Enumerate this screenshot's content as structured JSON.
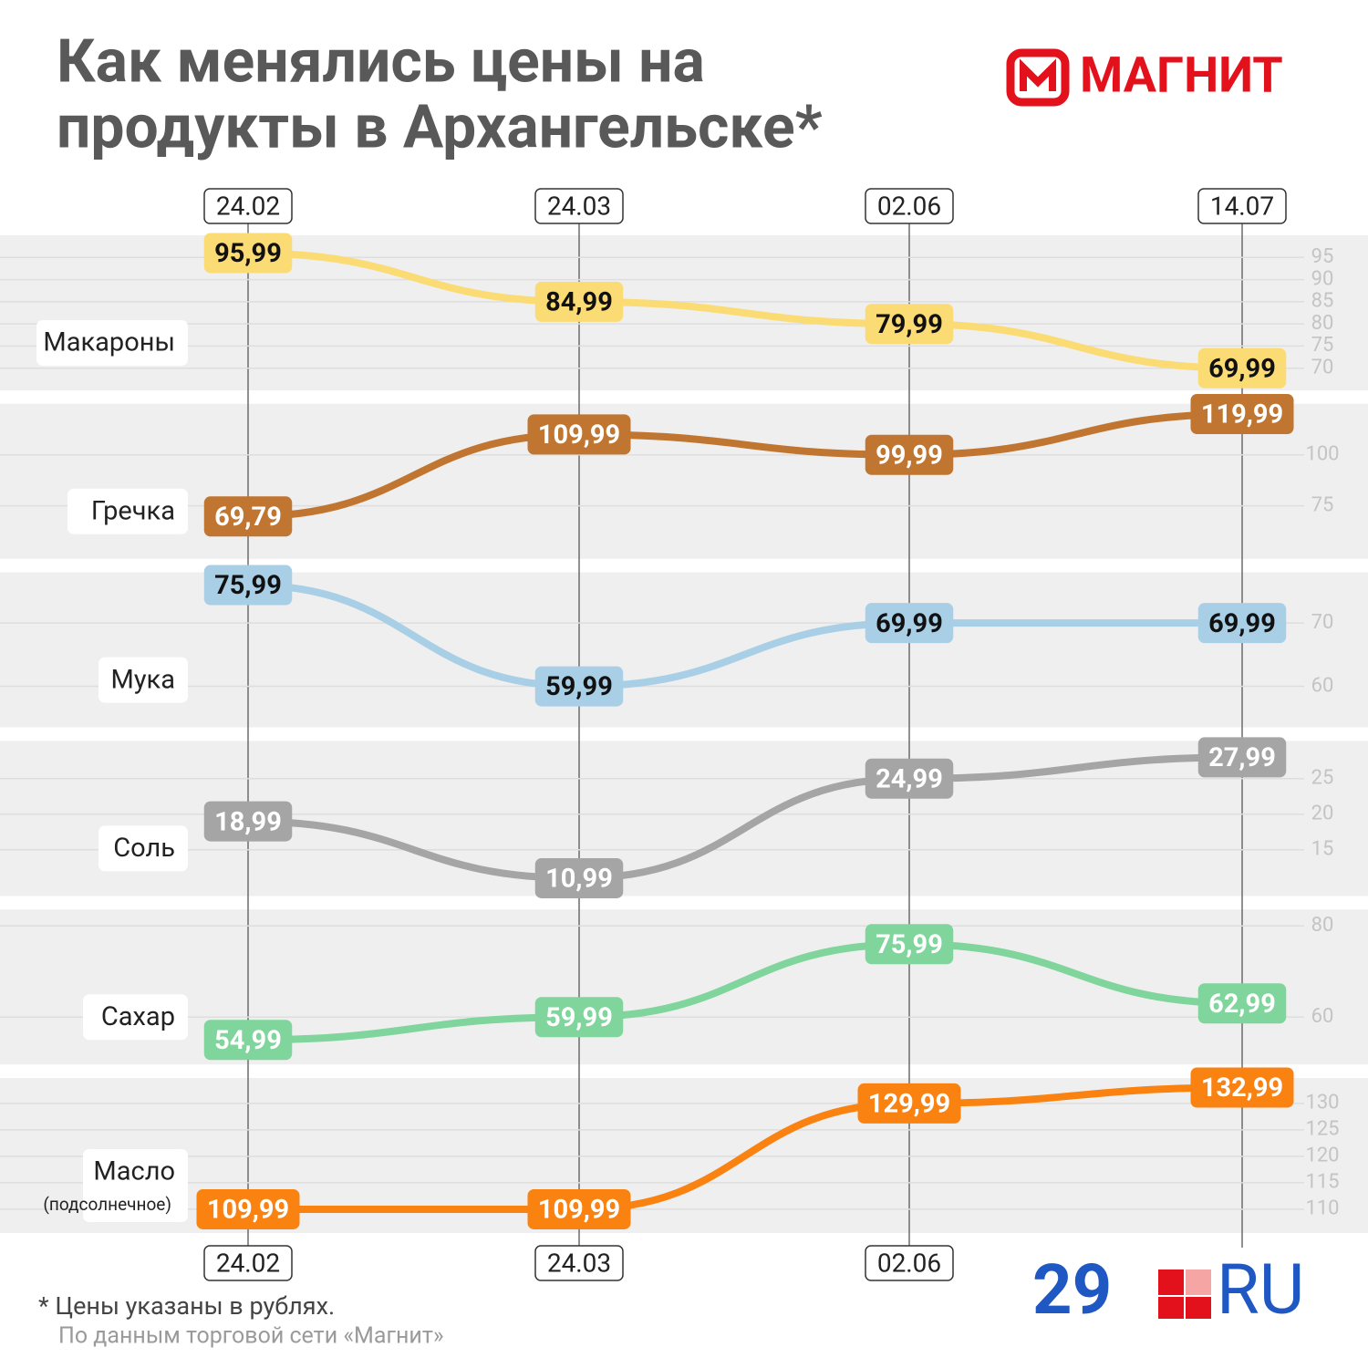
{
  "title": [
    "Как менялись цены на",
    "продукты в Архангельске*"
  ],
  "logos": {
    "magnit": "МАГНИТ",
    "site": "29",
    "site_suffix": "RU"
  },
  "footer": {
    "note": "* Цены указаны в рублях.",
    "source": "По данным торговой сети «Магнит»"
  },
  "chart_data": [
    {
      "type": "line",
      "categories": [
        "24.02",
        "24.03",
        "02.06",
        "14.07"
      ],
      "series": [
        {
          "name": "Макароны",
          "color": "#fbdb74",
          "label_text_color": "#111111",
          "values": [
            95.99,
            84.99,
            79.99,
            69.99
          ],
          "value_labels": [
            "95,99",
            "84,99",
            "79,99",
            "69,99"
          ]
        }
      ],
      "ylim": [
        65,
        100
      ],
      "yticks": [
        95,
        90,
        85,
        80,
        75,
        70
      ],
      "grid": true
    },
    {
      "type": "line",
      "categories": [
        "24.02",
        "24.03",
        "02.06",
        "14.07"
      ],
      "series": [
        {
          "name": "Гречка",
          "color": "#c07530",
          "label_text_color": "#ffffff",
          "values": [
            69.79,
            109.99,
            99.99,
            119.99
          ],
          "value_labels": [
            "69,79",
            "109,99",
            "99,99",
            "119,99"
          ]
        }
      ],
      "ylim": [
        49,
        125
      ],
      "yticks": [
        100,
        75
      ],
      "grid": true
    },
    {
      "type": "line",
      "categories": [
        "24.02",
        "24.03",
        "02.06",
        "14.07"
      ],
      "series": [
        {
          "name": "Мука",
          "color": "#a9cfe6",
          "label_text_color": "#111111",
          "values": [
            75.99,
            59.99,
            69.99,
            69.99
          ],
          "value_labels": [
            "75,99",
            "59,99",
            "69,99",
            "69,99"
          ]
        }
      ],
      "ylim": [
        53.5,
        78
      ],
      "yticks": [
        70,
        60
      ],
      "grid": true
    },
    {
      "type": "line",
      "categories": [
        "24.02",
        "24.03",
        "02.06",
        "14.07"
      ],
      "series": [
        {
          "name": "Соль",
          "color": "#a5a5a5",
          "label_text_color": "#ffffff",
          "values": [
            18.99,
            10.99,
            24.99,
            27.99
          ],
          "value_labels": [
            "18,99",
            "10,99",
            "24,99",
            "27,99"
          ]
        }
      ],
      "ylim": [
        8.5,
        30.3
      ],
      "yticks": [
        25,
        20,
        15
      ],
      "grid": true
    },
    {
      "type": "line",
      "categories": [
        "24.02",
        "24.03",
        "02.06",
        "14.07"
      ],
      "series": [
        {
          "name": "Сахар",
          "color": "#7fd59b",
          "label_text_color": "#ffffff",
          "values": [
            54.99,
            59.99,
            75.99,
            62.99
          ],
          "value_labels": [
            "54,99",
            "59,99",
            "75,99",
            "62,99"
          ]
        }
      ],
      "ylim": [
        49.6,
        83.6
      ],
      "yticks": [
        80,
        60
      ],
      "grid": true
    },
    {
      "type": "line",
      "name_note": "(подсолнечное)",
      "categories": [
        "24.02",
        "24.03",
        "02.06",
        "14.07"
      ],
      "series": [
        {
          "name": "Масло",
          "color": "#f98210",
          "label_text_color": "#ffffff",
          "values": [
            109.99,
            109.99,
            129.99,
            132.99
          ],
          "value_labels": [
            "109,99",
            "109,99",
            "129,99",
            "132,99"
          ]
        }
      ],
      "ylim": [
        105.5,
        134.8
      ],
      "yticks": [
        130,
        125,
        120,
        115,
        110
      ],
      "grid": true
    }
  ]
}
